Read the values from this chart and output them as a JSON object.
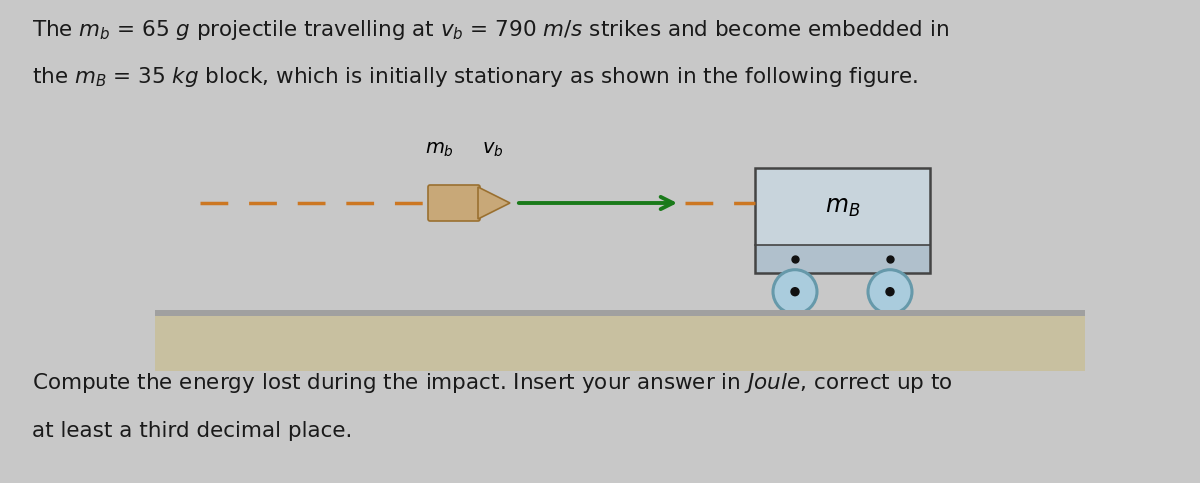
{
  "bg_color": "#c8c8c8",
  "text_color": "#1a1a1a",
  "line1": "The $m_b$ = 65 $g$ projectile travelling at $v_b$ = 790 $m/s$ strikes and become embedded in",
  "line2": "the $m_B$ = 35 $kg$ block, which is initially stationary as shown in the following figure.",
  "bottom1": "Compute the energy lost during the impact. Insert your answer in $Joule$, correct up to",
  "bottom2": "at least a third decimal place.",
  "dashed_color": "#cc7722",
  "arrow_color": "#1a7a1a",
  "block_upper_color": "#c8d4dc",
  "block_lower_color": "#b0c0cc",
  "block_outline_color": "#444444",
  "floor_top_color": "#a0a0a0",
  "floor_body_color": "#c8c0a0",
  "wheel_outer_color": "#6699aa",
  "wheel_inner_color": "#aaccdd",
  "wheel_dot_color": "#111111",
  "bullet_body_color": "#c8a878",
  "bullet_tip_color": "#c8a878",
  "bullet_outline_color": "#9a7030",
  "font_size": 15.5,
  "fig_width": 12.0,
  "fig_height": 4.83
}
